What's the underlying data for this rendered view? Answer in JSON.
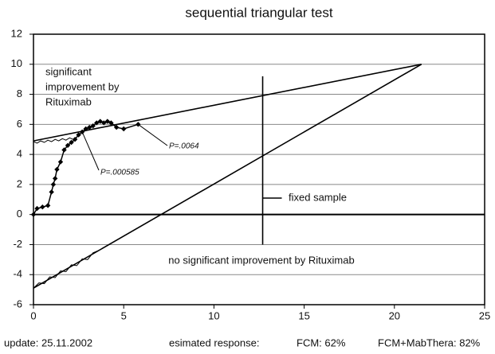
{
  "chart_data": {
    "type": "line",
    "title": "sequential triangular test",
    "xlim": [
      0,
      25
    ],
    "ylim": [
      -6,
      12
    ],
    "xticks": [
      0,
      5,
      10,
      15,
      20,
      25
    ],
    "yticks": [
      -6,
      -4,
      -2,
      0,
      2,
      4,
      6,
      8,
      10,
      12
    ],
    "grid": true,
    "series": [
      {
        "color": "#000000",
        "marker": "diamond",
        "x": [
          0,
          0.2,
          0.5,
          0.8,
          1.0,
          1.1,
          1.2,
          1.3,
          1.5,
          1.7,
          1.9,
          2.1,
          2.3,
          2.5,
          2.7,
          2.9,
          3.1,
          3.3,
          3.5,
          3.7,
          3.9,
          4.1,
          4.3,
          4.6,
          5.0,
          5.8
        ],
        "values": [
          0,
          0.4,
          0.5,
          0.6,
          1.5,
          2.0,
          2.4,
          3.0,
          3.5,
          4.3,
          4.6,
          4.8,
          5.0,
          5.3,
          5.5,
          5.7,
          5.8,
          5.9,
          6.1,
          6.2,
          6.1,
          6.2,
          6.1,
          5.8,
          5.7,
          6.0
        ]
      },
      {
        "color": "#000000",
        "x": [
          0,
          0.2,
          0.4,
          0.6,
          0.8,
          1.0,
          1.2,
          1.4,
          1.6,
          1.8,
          2.0,
          2.2,
          2.4
        ],
        "values": [
          4.85,
          4.75,
          4.9,
          4.8,
          4.95,
          4.85,
          5.0,
          4.9,
          5.05,
          4.95,
          5.1,
          5.0,
          5.15
        ]
      },
      {
        "color": "#000000",
        "x": [
          0,
          0.3,
          0.6,
          0.9,
          1.2,
          1.5,
          1.8,
          2.1,
          2.4,
          2.7,
          3.0,
          3.3,
          3.6
        ],
        "values": [
          -4.9,
          -4.55,
          -4.6,
          -4.15,
          -4.2,
          -3.75,
          -3.8,
          -3.35,
          -3.4,
          -2.95,
          -3.0,
          -2.55,
          -2.4
        ]
      }
    ],
    "ref_lines": [
      {
        "x": [
          0,
          21.5
        ],
        "values": [
          4.9,
          10
        ]
      },
      {
        "x": [
          0,
          21.5
        ],
        "values": [
          -4.9,
          10
        ]
      },
      {
        "x": [
          12.7,
          12.7
        ],
        "values": [
          -2,
          9.2
        ]
      }
    ],
    "annotations": {
      "upper_region": [
        "significant",
        "improvement by",
        "Rituximab"
      ],
      "lower_region": "no significant improvement by Rituximab",
      "fixed_sample": "fixed sample",
      "p_final": "P=.0064",
      "p_cross": "P=.000585"
    },
    "footer": {
      "update": "update: 25.11.2002",
      "response_label": "esimated response:",
      "fcm": "FCM: 62%",
      "fcm_mab": "FCM+MabThera: 82%"
    }
  }
}
